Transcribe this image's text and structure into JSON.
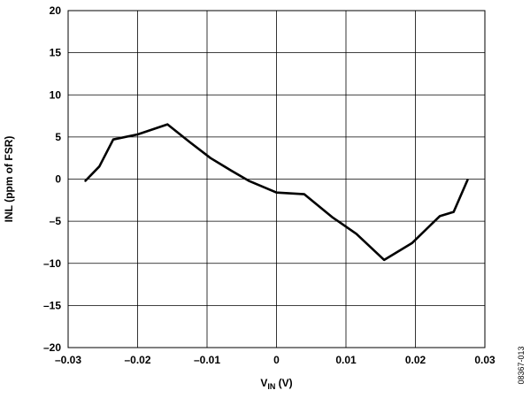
{
  "chart_data": {
    "type": "line",
    "title": "",
    "xlabel_main": "V",
    "xlabel_sub": "IN",
    "xlabel_unit": " (V)",
    "ylabel": "INL (ppm of FSR)",
    "xlim": [
      -0.03,
      0.03
    ],
    "ylim": [
      -20,
      20
    ],
    "x_ticks": [
      -0.03,
      -0.02,
      -0.01,
      0,
      0.01,
      0.02,
      0.03
    ],
    "x_tick_labels": [
      "–0.03",
      "–0.02",
      "–0.01",
      "0",
      "0.01",
      "0.02",
      "0.03"
    ],
    "y_ticks": [
      -20,
      -15,
      -10,
      -5,
      0,
      5,
      10,
      15,
      20
    ],
    "y_tick_labels": [
      "–20",
      "–15",
      "–10",
      "–5",
      "0",
      "5",
      "10",
      "15",
      "20"
    ],
    "grid": true,
    "series": [
      {
        "x": [
          -0.0275,
          -0.0255,
          -0.0235,
          -0.02,
          -0.0157,
          -0.0125,
          -0.0095,
          -0.0065,
          -0.004,
          0,
          0.004,
          0.008,
          0.0115,
          0.0155,
          0.0195,
          0.0235,
          0.0255,
          0.0275
        ],
        "y": [
          -0.2,
          1.5,
          4.7,
          5.3,
          6.5,
          4.4,
          2.5,
          1.0,
          -0.2,
          -1.6,
          -1.8,
          -4.5,
          -6.5,
          -9.6,
          -7.6,
          -4.4,
          -3.9,
          -0.1
        ],
        "color": "#000000"
      }
    ]
  },
  "figure_id": "08367-013"
}
